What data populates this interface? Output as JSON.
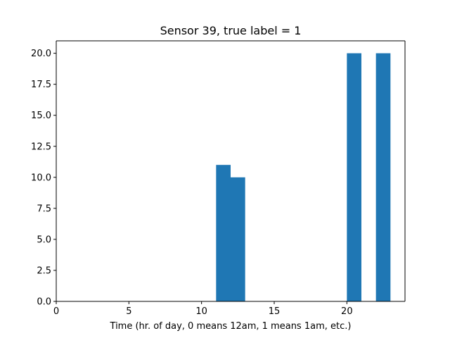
{
  "chart_data": {
    "type": "bar",
    "title": "Sensor 39, true label = 1",
    "xlabel": "Time (hr. of day, 0 means 12am, 1 means 1am, etc.)",
    "ylabel": "",
    "xlim": [
      0,
      24
    ],
    "ylim": [
      0,
      21
    ],
    "x_ticks": [
      0,
      5,
      10,
      15,
      20
    ],
    "x_tick_labels": [
      "0",
      "5",
      "10",
      "15",
      "20"
    ],
    "y_ticks": [
      0,
      2.5,
      5,
      7.5,
      10,
      12.5,
      15,
      17.5,
      20
    ],
    "y_tick_labels": [
      "0.0",
      "2.5",
      "5.0",
      "7.5",
      "10.0",
      "12.5",
      "15.0",
      "17.5",
      "20.0"
    ],
    "bar_width": 1,
    "bars": [
      {
        "x": 11,
        "value": 11
      },
      {
        "x": 12,
        "value": 10
      },
      {
        "x": 20,
        "value": 20
      },
      {
        "x": 22,
        "value": 20
      }
    ],
    "grid": false,
    "colors": {
      "bar": "#1f77b4",
      "axis": "#000000"
    }
  }
}
